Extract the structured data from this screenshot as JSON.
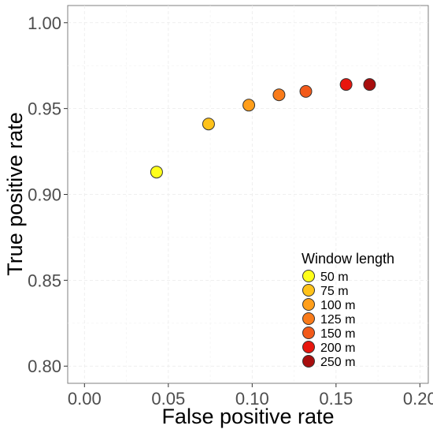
{
  "chart_data": {
    "type": "scatter",
    "xlabel": "False positive rate",
    "ylabel": "True positive rate",
    "xlim": [
      -0.01,
      0.205
    ],
    "ylim": [
      0.79,
      1.01
    ],
    "x_ticks": [
      "0.00",
      "0.05",
      "0.10",
      "0.15",
      "0.20"
    ],
    "x_tick_values": [
      0.0,
      0.05,
      0.1,
      0.15,
      0.2
    ],
    "y_ticks": [
      "0.80",
      "0.85",
      "0.90",
      "0.95",
      "1.00"
    ],
    "y_tick_values": [
      0.8,
      0.85,
      0.9,
      0.95,
      1.0
    ],
    "grid": true,
    "legend": {
      "title": "Window length",
      "placement": "bottom-right"
    },
    "series": [
      {
        "name": "50 m",
        "x": 0.043,
        "y": 0.913,
        "color": "#FFFF1A"
      },
      {
        "name": "75 m",
        "x": 0.074,
        "y": 0.941,
        "color": "#FFC21A"
      },
      {
        "name": "100 m",
        "x": 0.098,
        "y": 0.952,
        "color": "#FF9E1A"
      },
      {
        "name": "125 m",
        "x": 0.116,
        "y": 0.958,
        "color": "#F97B1A"
      },
      {
        "name": "150 m",
        "x": 0.132,
        "y": 0.96,
        "color": "#F25A1A"
      },
      {
        "name": "200 m",
        "x": 0.156,
        "y": 0.964,
        "color": "#E8160E"
      },
      {
        "name": "250 m",
        "x": 0.17,
        "y": 0.964,
        "color": "#A80E0E"
      }
    ]
  }
}
